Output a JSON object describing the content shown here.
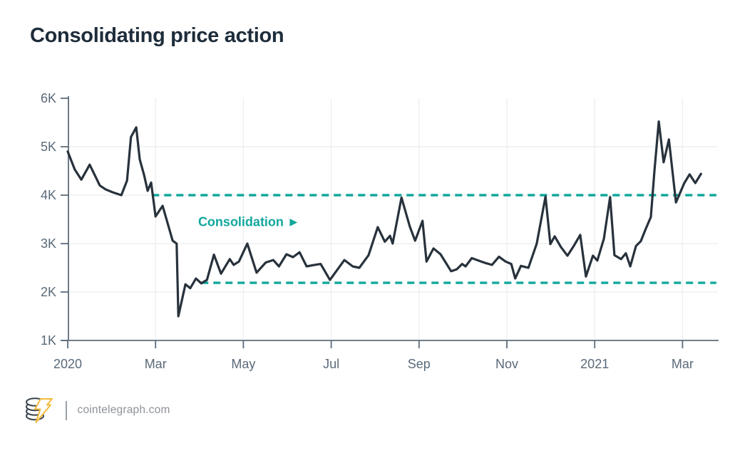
{
  "title": "Consolidating price action",
  "footer": {
    "site": "cointelegraph.com"
  },
  "colors": {
    "title_text": "#1e2c3a",
    "price_line": "#28323c",
    "teal_accent": "#12a79c",
    "axis": "#5d6c7c",
    "tick_text": "#5a6a79",
    "grid": "#edeff1",
    "footer_text": "#8d9299",
    "divider": "#9aa0a8",
    "logo_outline": "#39434d",
    "logo_bolt": "#f2bb3d"
  },
  "chart_data": {
    "type": "line",
    "title": "Consolidating price action",
    "xlabel": "",
    "ylabel": "",
    "x_unit": "months since Jan 2020",
    "x_range": [
      0,
      14.8
    ],
    "y_range_k": [
      1,
      6
    ],
    "legend": "none",
    "grid": {
      "h_values": [
        2,
        3,
        4,
        5
      ],
      "v_positions": [
        2,
        4,
        6,
        8,
        10,
        12,
        14
      ]
    },
    "y_ticks": [
      {
        "value": 6,
        "label": "6K"
      },
      {
        "value": 5,
        "label": "5K"
      },
      {
        "value": 4,
        "label": "4K"
      },
      {
        "value": 3,
        "label": "3K"
      },
      {
        "value": 2,
        "label": "2K"
      },
      {
        "value": 1,
        "label": "1K"
      }
    ],
    "x_ticks": [
      {
        "pos": 0,
        "label": "2020"
      },
      {
        "pos": 2,
        "label": "Mar"
      },
      {
        "pos": 4,
        "label": "May"
      },
      {
        "pos": 6,
        "label": "Jul"
      },
      {
        "pos": 8,
        "label": "Sep"
      },
      {
        "pos": 10,
        "label": "Nov"
      },
      {
        "pos": 12,
        "label": "2021"
      },
      {
        "pos": 14,
        "label": "Mar"
      }
    ],
    "consolidation_band": [
      {
        "name": "resistance",
        "value_k": 4.0,
        "start": 1.92,
        "end": 14.77
      },
      {
        "name": "support",
        "value_k": 2.19,
        "start": 3.04,
        "end": 14.77
      }
    ],
    "annotation": {
      "text": "Consolidation ►",
      "x": 2.97,
      "y_k": 3.42
    },
    "series": [
      {
        "name": "price",
        "points": [
          [
            0,
            4.9
          ],
          [
            0.16,
            4.53
          ],
          [
            0.31,
            4.32
          ],
          [
            0.5,
            4.63
          ],
          [
            0.73,
            4.2
          ],
          [
            0.86,
            4.12
          ],
          [
            1.02,
            4.06
          ],
          [
            1.22,
            4.0
          ],
          [
            1.35,
            4.3
          ],
          [
            1.44,
            5.2
          ],
          [
            1.56,
            5.4
          ],
          [
            1.64,
            4.74
          ],
          [
            1.74,
            4.41
          ],
          [
            1.82,
            4.09
          ],
          [
            1.9,
            4.26
          ],
          [
            2.0,
            3.56
          ],
          [
            2.16,
            3.78
          ],
          [
            2.39,
            3.06
          ],
          [
            2.48,
            3.0
          ],
          [
            2.52,
            1.5
          ],
          [
            2.68,
            2.16
          ],
          [
            2.79,
            2.08
          ],
          [
            2.92,
            2.28
          ],
          [
            3.04,
            2.18
          ],
          [
            3.17,
            2.25
          ],
          [
            3.33,
            2.77
          ],
          [
            3.49,
            2.38
          ],
          [
            3.69,
            2.68
          ],
          [
            3.78,
            2.56
          ],
          [
            3.9,
            2.63
          ],
          [
            4.09,
            3.0
          ],
          [
            4.3,
            2.4
          ],
          [
            4.51,
            2.61
          ],
          [
            4.68,
            2.66
          ],
          [
            4.81,
            2.53
          ],
          [
            4.98,
            2.78
          ],
          [
            5.13,
            2.72
          ],
          [
            5.28,
            2.82
          ],
          [
            5.44,
            2.53
          ],
          [
            5.62,
            2.56
          ],
          [
            5.76,
            2.58
          ],
          [
            5.97,
            2.25
          ],
          [
            6.3,
            2.66
          ],
          [
            6.49,
            2.53
          ],
          [
            6.64,
            2.5
          ],
          [
            6.85,
            2.76
          ],
          [
            7.06,
            3.34
          ],
          [
            7.22,
            3.04
          ],
          [
            7.34,
            3.16
          ],
          [
            7.4,
            3.0
          ],
          [
            7.6,
            3.95
          ],
          [
            7.79,
            3.35
          ],
          [
            7.91,
            3.06
          ],
          [
            8.08,
            3.47
          ],
          [
            8.17,
            2.63
          ],
          [
            8.33,
            2.9
          ],
          [
            8.49,
            2.78
          ],
          [
            8.73,
            2.43
          ],
          [
            8.86,
            2.47
          ],
          [
            8.98,
            2.58
          ],
          [
            9.06,
            2.53
          ],
          [
            9.2,
            2.7
          ],
          [
            9.35,
            2.65
          ],
          [
            9.51,
            2.6
          ],
          [
            9.66,
            2.56
          ],
          [
            9.82,
            2.73
          ],
          [
            9.97,
            2.63
          ],
          [
            10.1,
            2.58
          ],
          [
            10.19,
            2.28
          ],
          [
            10.32,
            2.54
          ],
          [
            10.49,
            2.5
          ],
          [
            10.68,
            3.0
          ],
          [
            10.88,
            3.97
          ],
          [
            10.99,
            2.99
          ],
          [
            11.09,
            3.15
          ],
          [
            11.23,
            2.93
          ],
          [
            11.38,
            2.75
          ],
          [
            11.53,
            2.96
          ],
          [
            11.67,
            3.18
          ],
          [
            11.8,
            2.32
          ],
          [
            11.96,
            2.75
          ],
          [
            12.06,
            2.65
          ],
          [
            12.21,
            3.1
          ],
          [
            12.35,
            3.96
          ],
          [
            12.45,
            2.76
          ],
          [
            12.6,
            2.68
          ],
          [
            12.71,
            2.8
          ],
          [
            12.81,
            2.53
          ],
          [
            12.94,
            2.95
          ],
          [
            13.05,
            3.05
          ],
          [
            13.16,
            3.3
          ],
          [
            13.28,
            3.55
          ],
          [
            13.36,
            4.5
          ],
          [
            13.46,
            5.52
          ],
          [
            13.57,
            4.68
          ],
          [
            13.69,
            5.15
          ],
          [
            13.85,
            3.85
          ],
          [
            14.04,
            4.25
          ],
          [
            14.16,
            4.43
          ],
          [
            14.29,
            4.25
          ],
          [
            14.42,
            4.44
          ]
        ]
      }
    ]
  }
}
